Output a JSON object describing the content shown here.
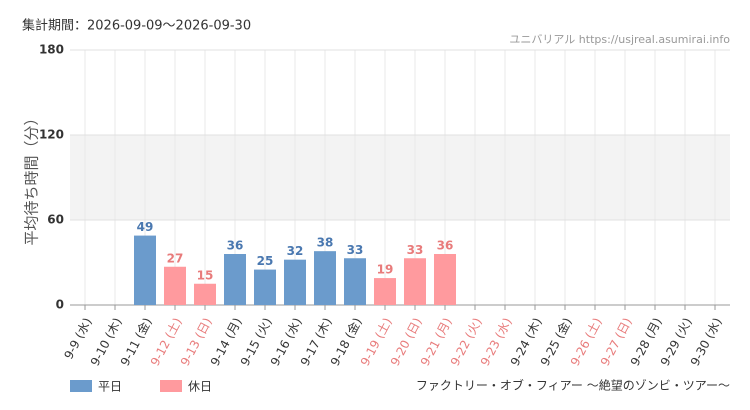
{
  "chart_data": {
    "type": "bar",
    "title": "集計期間：2026-09-09〜2026-09-30",
    "source": "ユニバリアル  https://usjreal.asumirai.info",
    "y_label": "平均待ち時間（分）",
    "footer": "ファクトリー・オブ・フィアー 〜絶望のゾンビ・ツアー〜",
    "categories": [
      "9-9 (水)",
      "9-10 (木)",
      "9-11 (金)",
      "9-12 (土)",
      "9-13 (日)",
      "9-14 (月)",
      "9-15 (火)",
      "9-16 (水)",
      "9-17 (木)",
      "9-18 (金)",
      "9-19 (土)",
      "9-20 (日)",
      "9-21 (月)",
      "9-22 (火)",
      "9-23 (水)",
      "9-24 (木)",
      "9-25 (金)",
      "9-26 (土)",
      "9-27 (日)",
      "9-28 (月)",
      "9-29 (火)",
      "9-30 (水)"
    ],
    "category_colors": [
      "#333",
      "#333",
      "#333",
      "#e87b7b",
      "#e87b7b",
      "#333",
      "#333",
      "#333",
      "#333",
      "#333",
      "#e87b7b",
      "#e87b7b",
      "#e87b7b",
      "#e87b7b",
      "#e87b7b",
      "#333",
      "#333",
      "#e87b7b",
      "#e87b7b",
      "#333",
      "#333",
      "#333"
    ],
    "series": [
      {
        "name": "平日",
        "color": "#6b9bcc",
        "label_color": "#4a78b0",
        "values": [
          null,
          null,
          49,
          null,
          null,
          36,
          25,
          32,
          38,
          33,
          null,
          null,
          null,
          null,
          null,
          null,
          null,
          null,
          null,
          null,
          null,
          null
        ]
      },
      {
        "name": "休日",
        "color": "#ff9a9e",
        "label_color": "#e87b7b",
        "values": [
          null,
          null,
          null,
          27,
          15,
          null,
          null,
          null,
          null,
          null,
          19,
          33,
          36,
          null,
          null,
          null,
          null,
          null,
          null,
          null,
          null,
          null
        ]
      }
    ],
    "ylim": [
      0,
      180
    ],
    "yticks": [
      0,
      60,
      120,
      180
    ],
    "grid": true
  }
}
